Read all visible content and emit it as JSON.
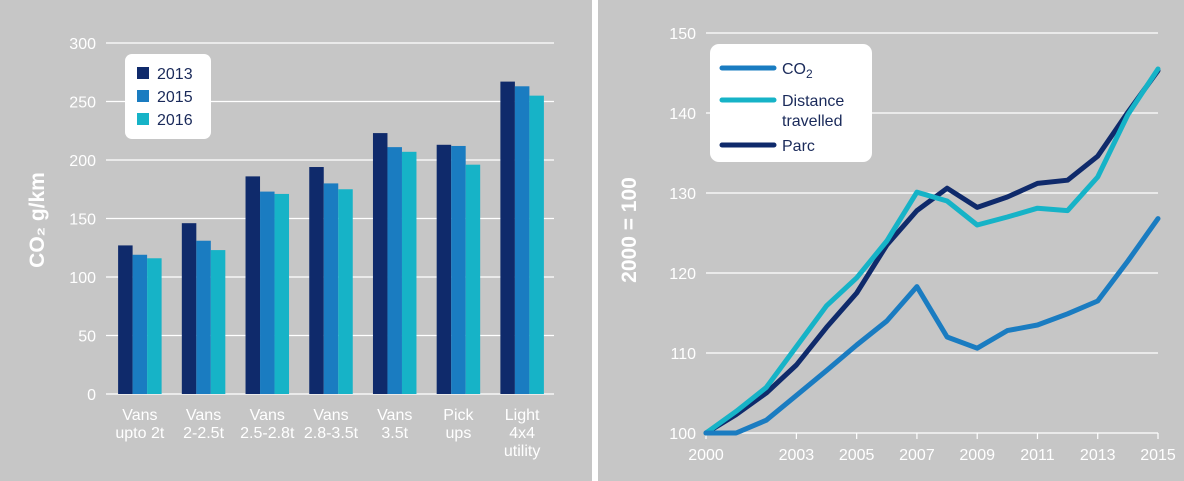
{
  "chart_data": [
    {
      "type": "bar",
      "ylabel": "CO₂ g/km",
      "ylim": [
        0,
        300
      ],
      "yticks": [
        0,
        50,
        100,
        150,
        200,
        250,
        300
      ],
      "grid": true,
      "legend_position": "top-left",
      "categories": [
        [
          "Vans",
          "upto 2t"
        ],
        [
          "Vans",
          "2-2.5t"
        ],
        [
          "Vans",
          "2.5-2.8t"
        ],
        [
          "Vans",
          "2.8-3.5t"
        ],
        [
          "Vans",
          "3.5t"
        ],
        [
          "Pick",
          "ups"
        ],
        [
          "Light",
          "4x4",
          "utility"
        ]
      ],
      "series": [
        {
          "name": "2013",
          "color": "#0f2a6b",
          "values": [
            127,
            146,
            186,
            194,
            223,
            213,
            267
          ]
        },
        {
          "name": "2015",
          "color": "#1a7cc1",
          "values": [
            119,
            131,
            173,
            180,
            211,
            212,
            263
          ]
        },
        {
          "name": "2016",
          "color": "#16b3c7",
          "values": [
            116,
            123,
            171,
            175,
            207,
            196,
            255
          ]
        }
      ]
    },
    {
      "type": "line",
      "ylabel": "2000 = 100",
      "ylim": [
        100,
        150
      ],
      "yticks": [
        100,
        110,
        120,
        130,
        140,
        150
      ],
      "xlim": [
        2000,
        2015
      ],
      "xticks": [
        2000,
        2003,
        2005,
        2007,
        2009,
        2011,
        2013,
        2015
      ],
      "grid": true,
      "legend_position": "top-left",
      "x": [
        2000,
        2001,
        2002,
        2003,
        2004,
        2005,
        2006,
        2007,
        2008,
        2009,
        2010,
        2011,
        2012,
        2013,
        2014,
        2015
      ],
      "series": [
        {
          "name": "Parc",
          "color": "#0f2a6b",
          "values": [
            100.0,
            102.3,
            105.0,
            108.5,
            113.2,
            117.5,
            123.5,
            127.8,
            130.6,
            128.2,
            129.5,
            131.2,
            131.6,
            134.6,
            140.1,
            145.3
          ]
        },
        {
          "name": "Distance travelled",
          "color": "#16b3c7",
          "values": [
            100.0,
            102.7,
            105.7,
            110.8,
            115.9,
            119.4,
            124.0,
            130.1,
            129.0,
            126.0,
            127.0,
            128.1,
            127.8,
            132.0,
            139.8,
            145.5
          ]
        },
        {
          "name": "CO2",
          "label_main": "CO",
          "label_sub": "2",
          "color": "#1a7cc1",
          "values": [
            100.0,
            100.0,
            101.6,
            104.7,
            107.8,
            111.0,
            114.0,
            118.3,
            112.0,
            110.6,
            112.8,
            113.5,
            114.9,
            116.5,
            121.5,
            126.8
          ]
        }
      ]
    }
  ]
}
